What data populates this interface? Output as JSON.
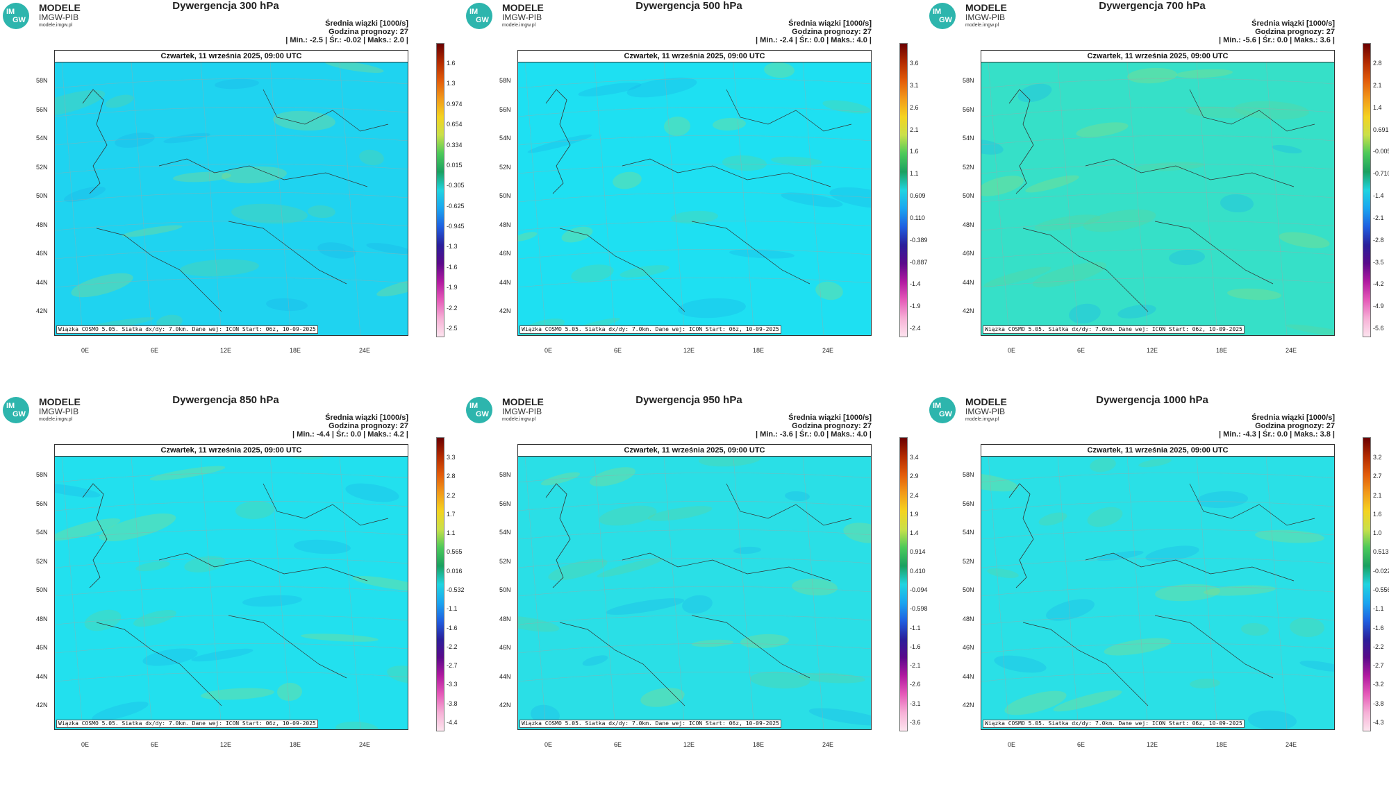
{
  "logo": {
    "circle_top": "IM",
    "circle_bottom": "GW",
    "line1": "MODELE",
    "line2": "IMGW-PIB",
    "line3": "modele.imgw.pl"
  },
  "common": {
    "subtitle": "Średnia wiązki [1000/s]",
    "forecast_hour": "Godzina prognozy: 27",
    "date": "Czwartek, 11 września 2025, 09:00 UTC",
    "footer": "Wiązka COSMO 5.05. Siatka dx/dy: 7.0km. Dane wej: ICON Start: 06z, 10-09-2025",
    "lat_labels": [
      "58N",
      "56N",
      "54N",
      "52N",
      "50N",
      "48N",
      "46N",
      "44N",
      "42N"
    ],
    "lon_labels": [
      "0E",
      "6E",
      "12E",
      "18E",
      "24E"
    ]
  },
  "panels": [
    {
      "title": "Dywergencja 300 hPa",
      "stats": "| Min.: -2.5 | Śr.: -0.02 | Maks.: 2.0 |",
      "ticks": [
        "1.6",
        "1.3",
        "0.974",
        "0.654",
        "0.334",
        "0.015",
        "-0.305",
        "-0.625",
        "-0.945",
        "-1.3",
        "-1.6",
        "-1.9",
        "-2.2",
        "-2.5"
      ],
      "base_color": "#1fd3f0"
    },
    {
      "title": "Dywergencja 500 hPa",
      "stats": "| Min.: -2.4 | Śr.: 0.0 | Maks.: 4.0 |",
      "ticks": [
        "3.6",
        "3.1",
        "2.6",
        "2.1",
        "1.6",
        "1.1",
        "0.609",
        "0.110",
        "-0.389",
        "-0.887",
        "-1.4",
        "-1.9",
        "-2.4"
      ],
      "base_color": "#1ee0f2"
    },
    {
      "title": "Dywergencja 700 hPa",
      "stats": "| Min.: -5.6 | Śr.: 0.0 | Maks.: 3.6 |",
      "ticks": [
        "2.8",
        "2.1",
        "1.4",
        "0.691",
        "-0.005",
        "-0.710",
        "-1.4",
        "-2.1",
        "-2.8",
        "-3.5",
        "-4.2",
        "-4.9",
        "-5.6"
      ],
      "base_color": "#36e0c8"
    },
    {
      "title": "Dywergencja 850 hPa",
      "stats": "| Min.: -4.4 | Śr.: 0.0 | Maks.: 4.2 |",
      "ticks": [
        "3.3",
        "2.8",
        "2.2",
        "1.7",
        "1.1",
        "0.565",
        "0.016",
        "-0.532",
        "-1.1",
        "-1.6",
        "-2.2",
        "-2.7",
        "-3.3",
        "-3.8",
        "-4.4"
      ],
      "base_color": "#22e0ee"
    },
    {
      "title": "Dywergencja 950 hPa",
      "stats": "| Min.: -3.6 | Śr.: 0.0 | Maks.: 4.0 |",
      "ticks": [
        "3.4",
        "2.9",
        "2.4",
        "1.9",
        "1.4",
        "0.914",
        "0.410",
        "-0.094",
        "-0.598",
        "-1.1",
        "-1.6",
        "-2.1",
        "-2.6",
        "-3.1",
        "-3.6"
      ],
      "base_color": "#2adfe6"
    },
    {
      "title": "Dywergencja 1000 hPa",
      "stats": "| Min.: -4.3 | Śr.: 0.0 | Maks.: 3.8 |",
      "ticks": [
        "3.2",
        "2.7",
        "2.1",
        "1.6",
        "1.0",
        "0.513",
        "-0.022",
        "-0.556",
        "-1.1",
        "-1.6",
        "-2.2",
        "-2.7",
        "-3.2",
        "-3.8",
        "-4.3"
      ],
      "base_color": "#2ae0e6"
    }
  ]
}
